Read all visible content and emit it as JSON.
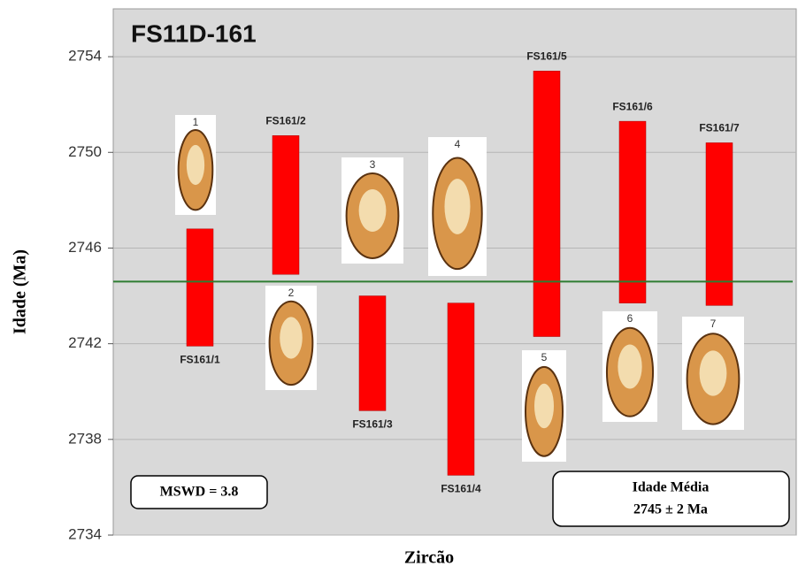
{
  "chart_data": {
    "type": "range_bar",
    "title": "FS11D-161",
    "y_label": "Idade (Ma)",
    "x_label": "Zircão",
    "categories": [
      "FS161/1",
      "FS161/2",
      "FS161/3",
      "FS161/4",
      "FS161/5",
      "FS161/6",
      "FS161/7"
    ],
    "low": [
      2741.9,
      2744.9,
      2739.2,
      2736.5,
      2742.3,
      2743.7,
      2743.6
    ],
    "high": [
      2746.8,
      2750.7,
      2744.0,
      2743.7,
      2753.4,
      2751.3,
      2750.4
    ],
    "grain_labels": [
      "1",
      "2",
      "3",
      "4",
      "5",
      "6",
      "7"
    ],
    "color": "#ff0000",
    "mean_line": 2744.6,
    "mean_line_color": "#2e7d32",
    "ylim": [
      2734,
      2756
    ],
    "yticks": [
      2734,
      2738,
      2742,
      2746,
      2750,
      2754
    ],
    "grid": true,
    "annotations": [
      "MSWD = 3.8",
      "Idade Média",
      "2745 ± 2 Ma"
    ]
  }
}
